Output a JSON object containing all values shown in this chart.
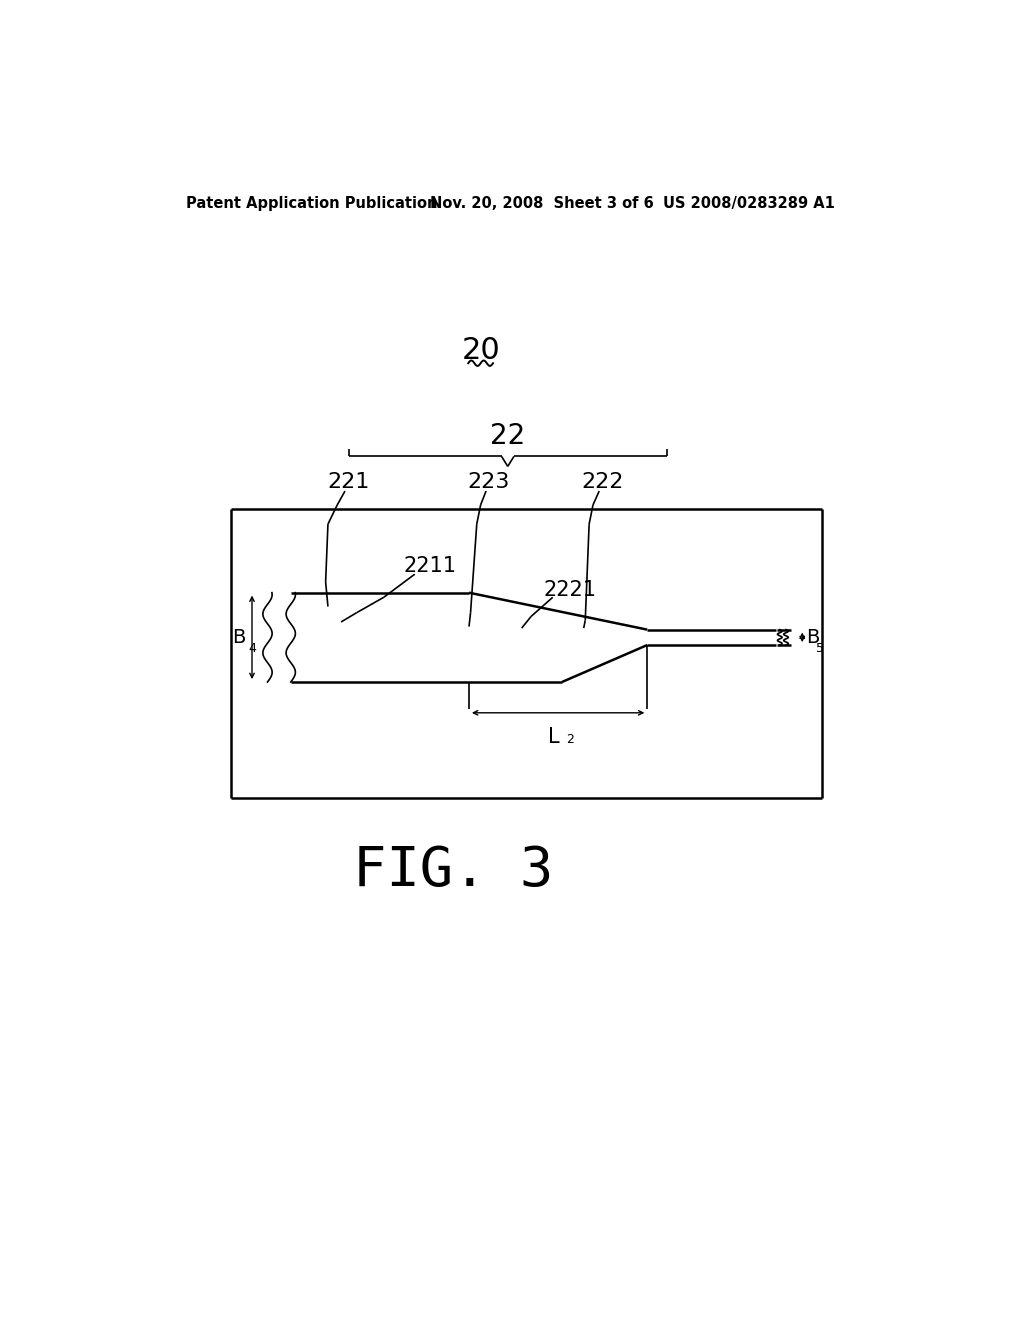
{
  "bg_color": "#ffffff",
  "text_color": "#000000",
  "header_left": "Patent Application Publication",
  "header_mid": "Nov. 20, 2008  Sheet 3 of 6",
  "header_right": "US 2008/0283289 A1",
  "fig_label": "FIG. 3",
  "label_20": "20",
  "label_22": "22",
  "label_221": "221",
  "label_222": "222",
  "label_223": "223",
  "label_2211": "2211",
  "label_2221": "2221",
  "label_B4": "B",
  "label_B4_sub": "4",
  "label_B5": "B",
  "label_B5_sub": "5",
  "label_L2": "L",
  "label_L2_sub": "2"
}
